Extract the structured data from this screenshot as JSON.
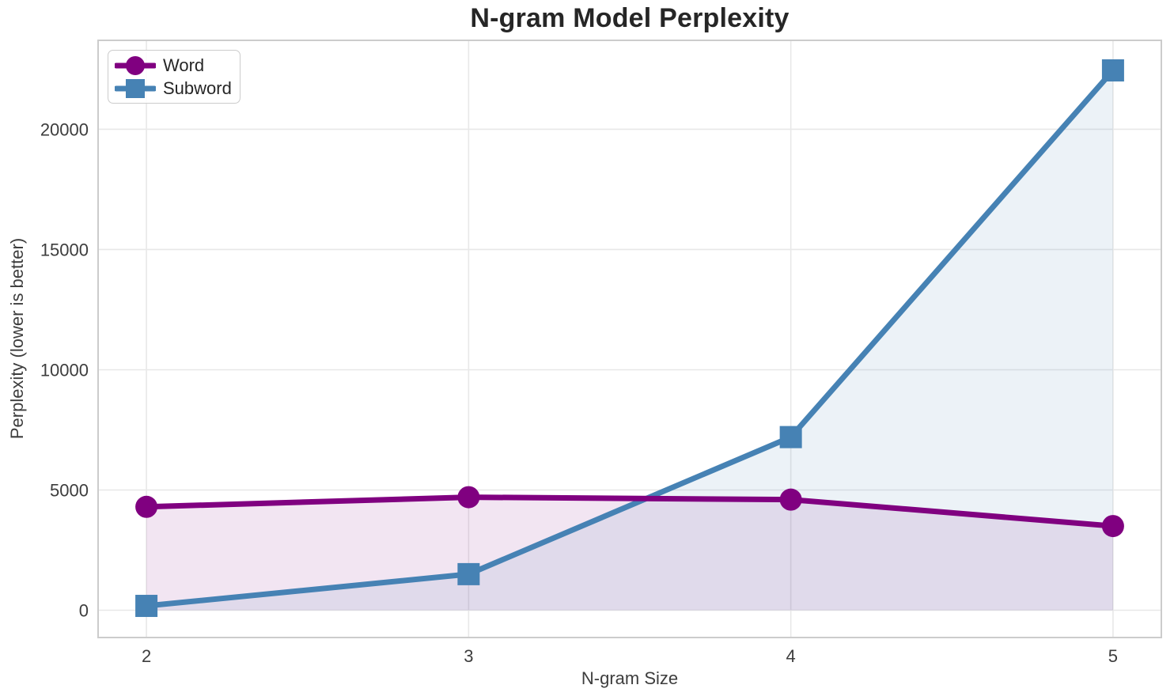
{
  "chart_data": {
    "type": "line",
    "title": "N-gram Model Perplexity",
    "xlabel": "N-gram Size",
    "ylabel": "Perplexity (lower is better)",
    "x": [
      2,
      3,
      4,
      5
    ],
    "series": [
      {
        "name": "Word",
        "color": "#800080",
        "marker": "circle",
        "values": [
          4300,
          4700,
          4600,
          3500
        ],
        "fill_alpha": 0.1
      },
      {
        "name": "Subword",
        "color": "#4682B4",
        "marker": "square",
        "values": [
          180,
          1500,
          7200,
          22450
        ],
        "fill_alpha": 0.1
      }
    ],
    "xticks": {
      "values": [
        2,
        3,
        4,
        5
      ],
      "labels": [
        "2",
        "3",
        "4",
        "5"
      ]
    },
    "yticks": {
      "values": [
        0,
        5000,
        10000,
        15000,
        20000
      ],
      "labels": [
        "0",
        "5000",
        "10000",
        "15000",
        "20000"
      ]
    },
    "xlim": [
      1.85,
      5.15
    ],
    "ylim": [
      -1135,
      23700
    ],
    "grid": true,
    "legend_position": "upper left",
    "fill_to_zero": true
  },
  "colors": {
    "grid": "#e8e8e8",
    "spine": "#cccccc",
    "tick_text": "#3d3d3d",
    "title_text": "#262626",
    "background": "#ffffff"
  }
}
